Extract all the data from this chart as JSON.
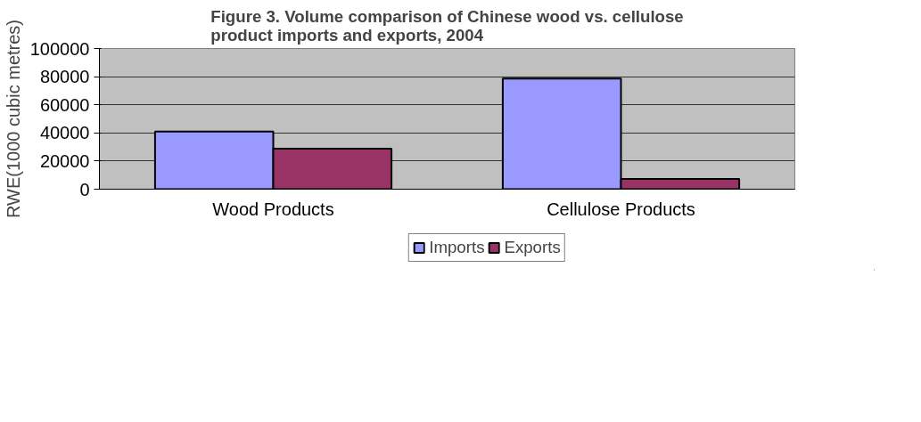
{
  "chart_data": {
    "type": "bar",
    "title": "Figure 3. Volume comparison of Chinese wood vs. cellulose\nproduct imports and exports, 2004",
    "ylabel": "RWE(1000 cubic metres)",
    "categories": [
      "Wood Products",
      "Cellulose Products"
    ],
    "series": [
      {
        "name": "Imports",
        "color": "#9999ff",
        "values": [
          41000,
          78700
        ]
      },
      {
        "name": "Exports",
        "color": "#993366",
        "values": [
          28800,
          7200
        ]
      }
    ],
    "ylim": [
      0,
      100000
    ],
    "yticks": [
      0,
      20000,
      40000,
      60000,
      80000,
      100000
    ],
    "grid": "y",
    "legend": "bottom"
  }
}
